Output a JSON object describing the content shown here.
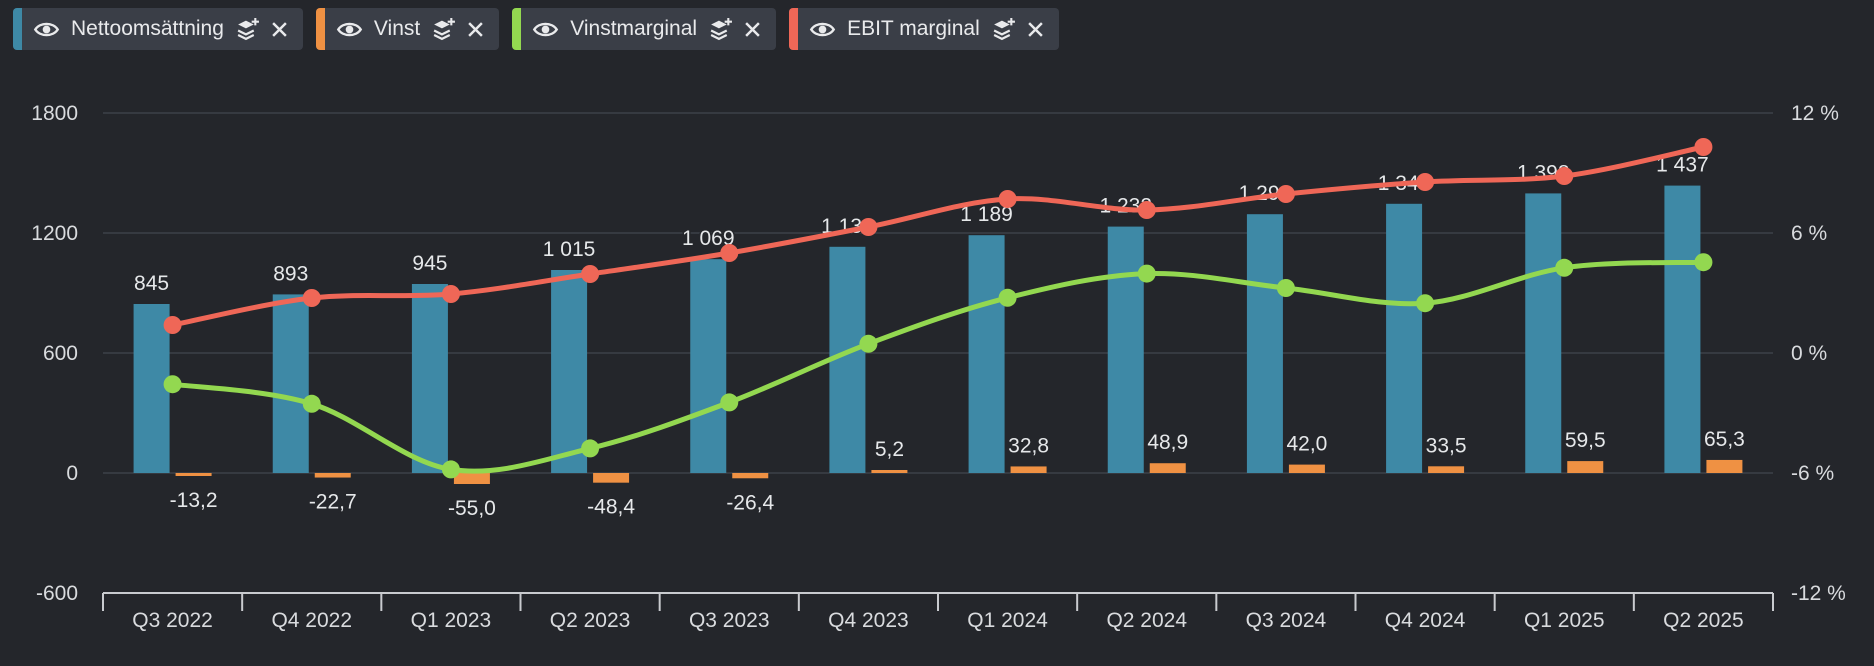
{
  "legend": {
    "items": [
      {
        "label": "Nettoomsättning",
        "color": "#3e89a6"
      },
      {
        "label": "Vinst",
        "color": "#ef9143"
      },
      {
        "label": "Vinstmarginal",
        "color": "#93d850"
      },
      {
        "label": "EBIT marginal",
        "color": "#ef6757"
      }
    ]
  },
  "chart_data": {
    "type": "combo",
    "categories": [
      "Q3 2022",
      "Q4 2022",
      "Q1 2023",
      "Q2 2023",
      "Q3 2023",
      "Q4 2023",
      "Q1 2024",
      "Q2 2024",
      "Q3 2024",
      "Q4 2024",
      "Q1 2025",
      "Q2 2025"
    ],
    "series": [
      {
        "name": "Nettoomsättning",
        "type": "bar",
        "axis": "left",
        "color": "#3e89a6",
        "values": [
          845,
          893,
          945,
          1015,
          1069,
          1131,
          1189,
          1232,
          1294,
          1346,
          1398,
          1437
        ],
        "labels": [
          "845",
          "893",
          "945",
          "1 015",
          "1 069",
          "1 131",
          "1 189",
          "1 232",
          "1 294",
          "1 346",
          "1 398",
          "1 437"
        ]
      },
      {
        "name": "Vinst",
        "type": "bar",
        "axis": "left",
        "color": "#ef9143",
        "values": [
          -13.2,
          -22.7,
          -55.0,
          -48.4,
          -26.4,
          5.2,
          32.8,
          48.9,
          42.0,
          33.5,
          59.5,
          65.3
        ],
        "labels": [
          "-13,2",
          "-22,7",
          "-55,0",
          "-48,4",
          "-26,4",
          "5,2",
          "32,8",
          "48,9",
          "42,0",
          "33,5",
          "59,5",
          "65,3"
        ]
      },
      {
        "name": "Vinstmarginal",
        "type": "line",
        "axis": "right",
        "color": "#93d850",
        "values": [
          -1.56,
          -2.54,
          -5.82,
          -4.77,
          -2.47,
          0.46,
          2.76,
          3.97,
          3.25,
          2.49,
          4.26,
          4.54
        ]
      },
      {
        "name": "EBIT marginal",
        "type": "line",
        "axis": "right",
        "color": "#ef6757",
        "values": [
          1.4,
          2.75,
          2.95,
          3.95,
          5.0,
          6.3,
          7.7,
          7.15,
          7.95,
          8.55,
          8.85,
          10.3
        ]
      }
    ],
    "left_axis": {
      "range": [
        -600,
        1800
      ],
      "ticks": [
        1800,
        1200,
        600,
        0,
        -600
      ],
      "labels": [
        "1800",
        "1200",
        "600",
        "0",
        "-600"
      ]
    },
    "right_axis": {
      "range": [
        -12,
        12
      ],
      "ticks": [
        12,
        6,
        0,
        -6,
        -12
      ],
      "labels": [
        "12 %",
        "6 %",
        "0 %",
        "-6 %",
        "-12 %"
      ]
    },
    "grid": true,
    "legend_position": "top"
  },
  "colors": {
    "background": "#24262b",
    "chip_background": "#3a3e47",
    "grid": "#363a41",
    "axis": "#c9cbcf",
    "text": "#d9dbde",
    "bar_label_text": "#e6e8ea"
  }
}
